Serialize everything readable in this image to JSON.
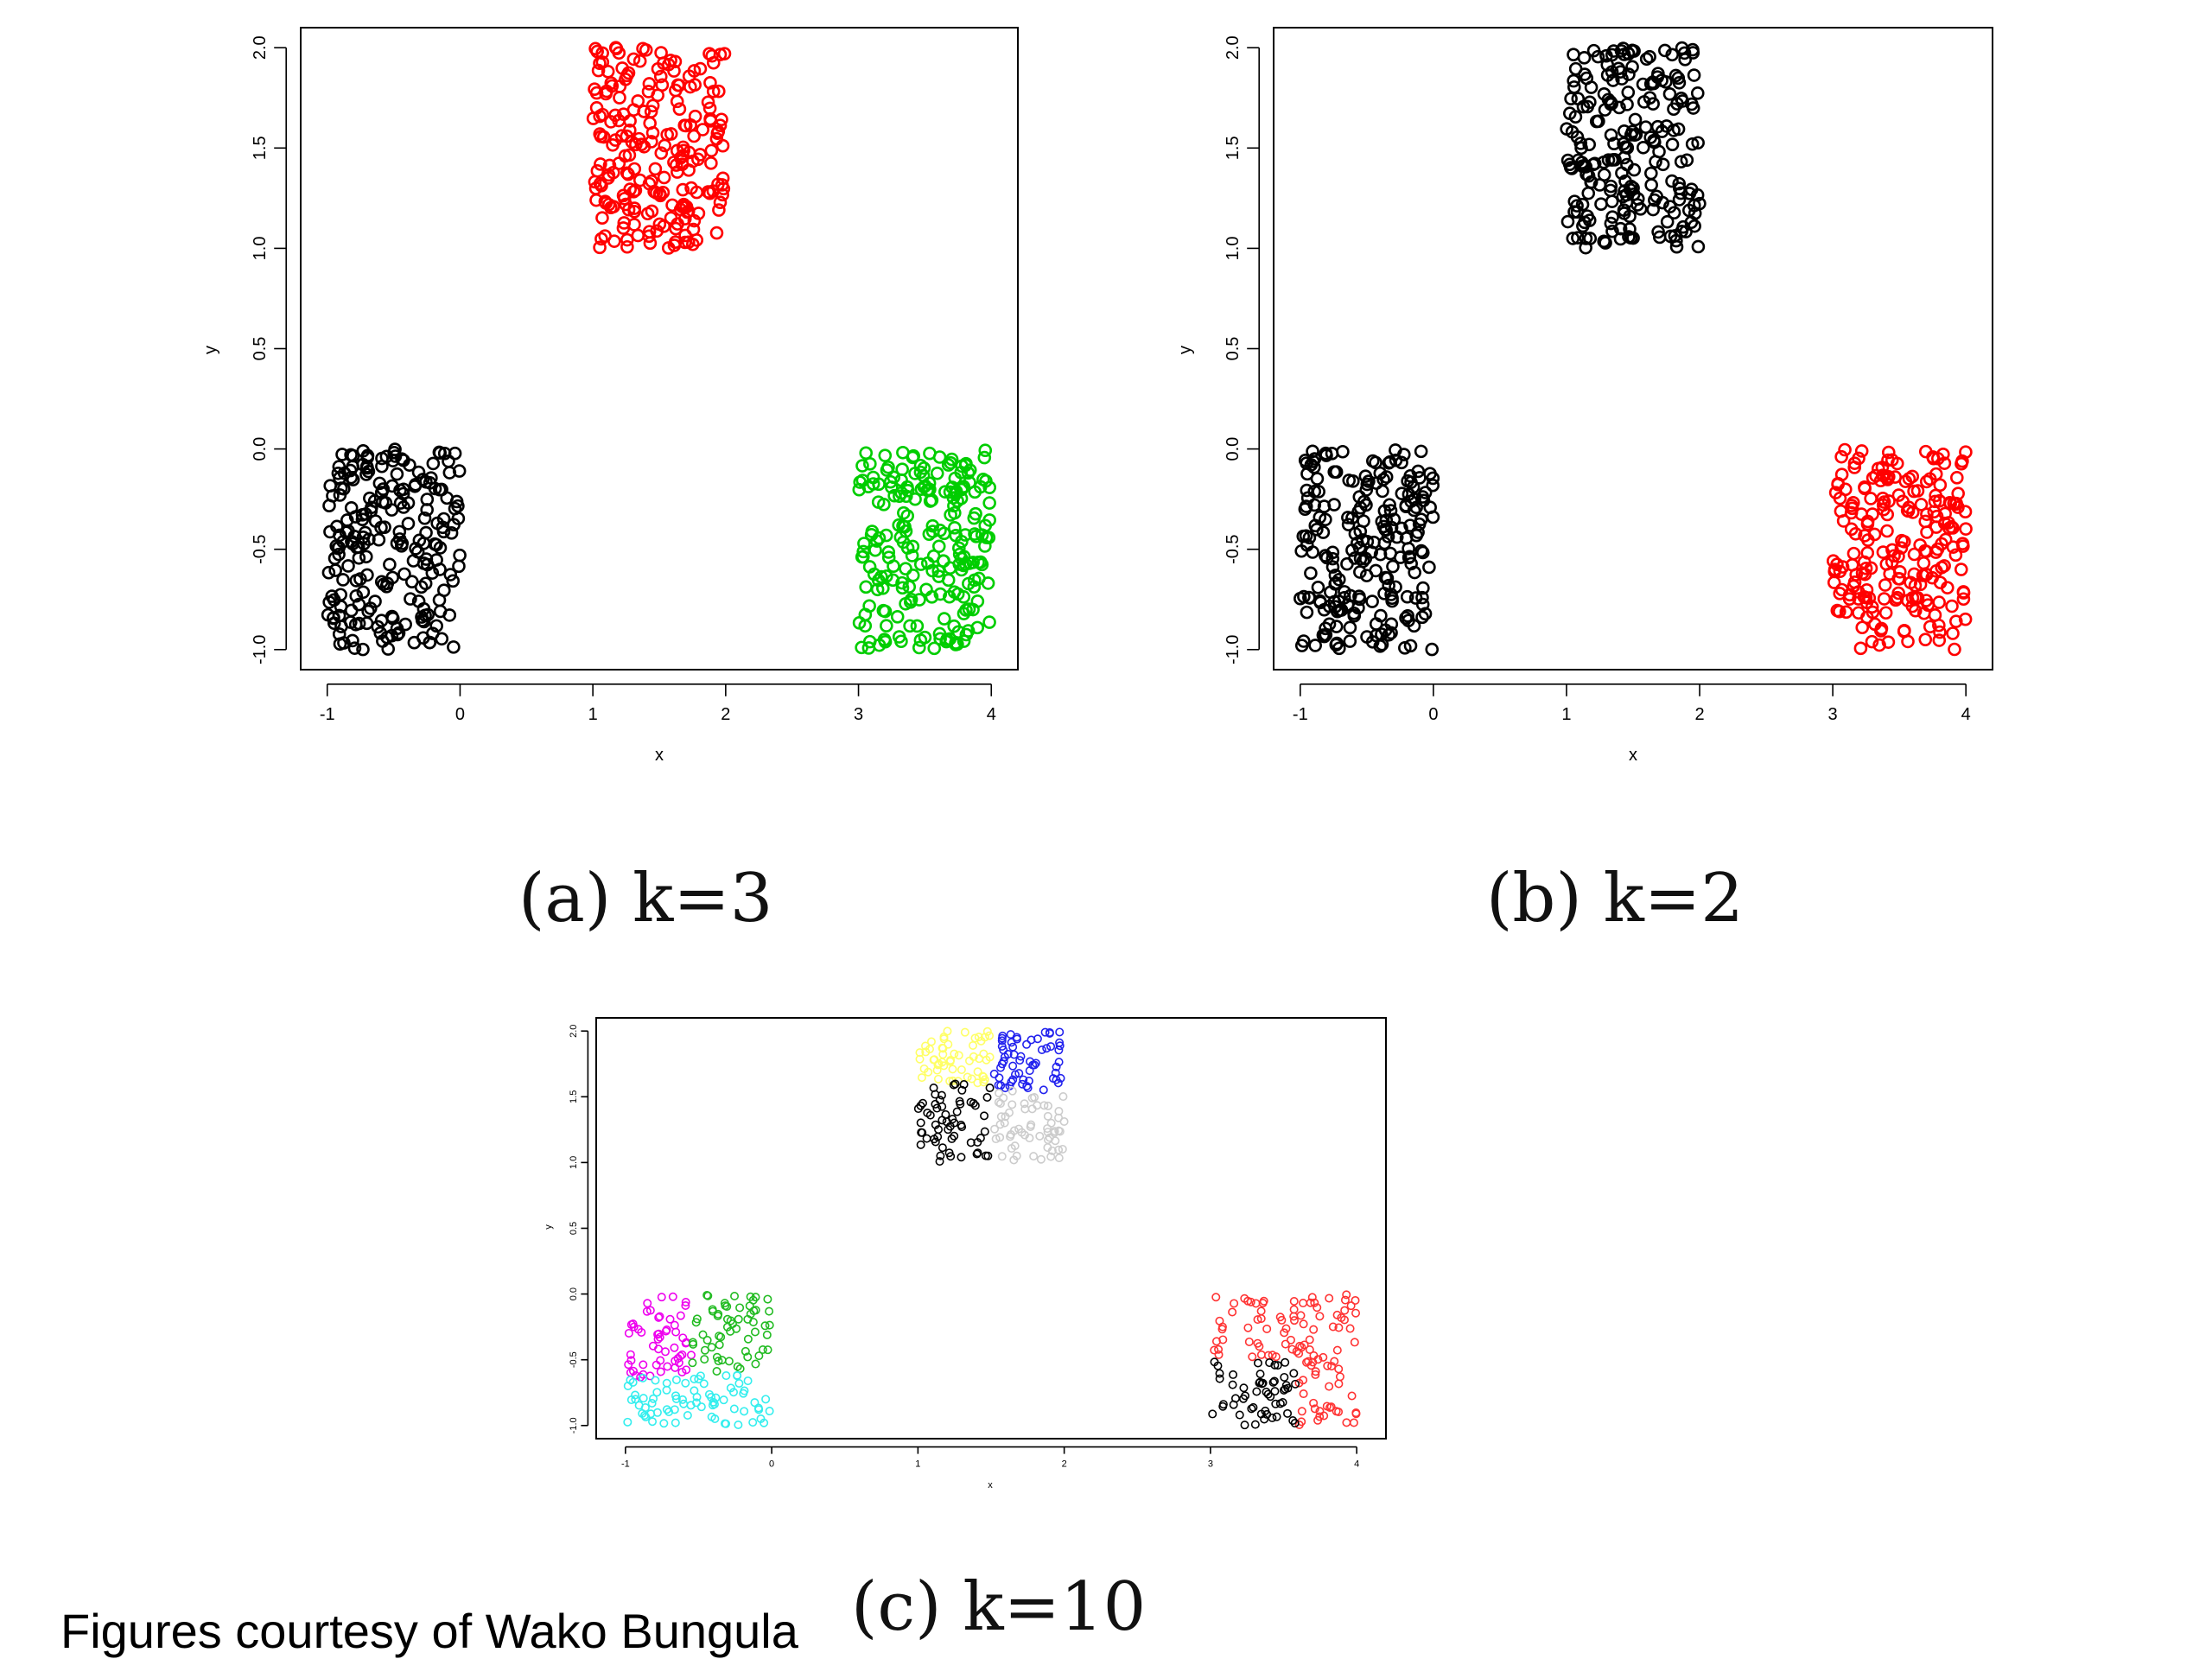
{
  "captions": {
    "a": "(a) k=3",
    "b": "(b) k=2",
    "c": "(c) k=10"
  },
  "credit": "Figures courtesy of Wako Bungula",
  "chart_data": [
    {
      "id": "a",
      "type": "scatter",
      "title": "",
      "xlabel": "x",
      "ylabel": "y",
      "xlim": [
        -1.2,
        4.2
      ],
      "ylim": [
        -1.1,
        2.1
      ],
      "xticks": [
        -1,
        0,
        1,
        2,
        3,
        4
      ],
      "xtick_labels": [
        "-1",
        "0",
        "1",
        "2",
        "3",
        "4"
      ],
      "yticks": [
        -1.0,
        -0.5,
        0.0,
        0.5,
        1.0,
        1.5,
        2.0
      ],
      "ytick_labels": [
        "-1.0",
        "-0.5",
        "0.0",
        "0.5",
        "1.0",
        "1.5",
        "2.0"
      ],
      "grid": false,
      "clusters": [
        {
          "color": "#000000",
          "x_range": [
            -1,
            0
          ],
          "y_range": [
            -1,
            0
          ],
          "count": 220
        },
        {
          "color": "#ff0000",
          "x_range": [
            1,
            2
          ],
          "y_range": [
            1,
            2
          ],
          "count": 220
        },
        {
          "color": "#00cd00",
          "x_range": [
            3,
            4
          ],
          "y_range": [
            -1,
            0
          ],
          "count": 220
        }
      ]
    },
    {
      "id": "b",
      "type": "scatter",
      "title": "",
      "xlabel": "x",
      "ylabel": "y",
      "xlim": [
        -1.2,
        4.2
      ],
      "ylim": [
        -1.1,
        2.1
      ],
      "xticks": [
        -1,
        0,
        1,
        2,
        3,
        4
      ],
      "xtick_labels": [
        "-1",
        "0",
        "1",
        "2",
        "3",
        "4"
      ],
      "yticks": [
        -1.0,
        -0.5,
        0.0,
        0.5,
        1.0,
        1.5,
        2.0
      ],
      "ytick_labels": [
        "-1.0",
        "-0.5",
        "0.0",
        "0.5",
        "1.0",
        "1.5",
        "2.0"
      ],
      "grid": false,
      "clusters": [
        {
          "color": "#000000",
          "x_range": [
            -1,
            0
          ],
          "y_range": [
            -1,
            0
          ],
          "count": 220
        },
        {
          "color": "#000000",
          "x_range": [
            1,
            2
          ],
          "y_range": [
            1,
            2
          ],
          "count": 220
        },
        {
          "color": "#ff0000",
          "x_range": [
            3,
            4
          ],
          "y_range": [
            -1,
            0
          ],
          "count": 220
        }
      ]
    },
    {
      "id": "c",
      "type": "scatter",
      "title": "",
      "xlabel": "x",
      "ylabel": "y",
      "xlim": [
        -1.2,
        4.2
      ],
      "ylim": [
        -1.1,
        2.1
      ],
      "xticks": [
        -1,
        0,
        1,
        2,
        3,
        4
      ],
      "xtick_labels": [
        "-1",
        "0",
        "1",
        "2",
        "3",
        "4"
      ],
      "yticks": [
        -1.0,
        -0.5,
        0.0,
        0.5,
        1.0,
        1.5,
        2.0
      ],
      "ytick_labels": [
        "-1.0",
        "-0.5",
        "0.0",
        "0.5",
        "1.0",
        "1.5",
        "2.0"
      ],
      "grid": false,
      "clusters": [
        {
          "color": "#ffff66",
          "x_range": [
            1,
            1.5
          ],
          "y_range": [
            1.6,
            2
          ],
          "count": 55
        },
        {
          "color": "#2222ee",
          "x_range": [
            1.5,
            2
          ],
          "y_range": [
            1.55,
            2
          ],
          "count": 60
        },
        {
          "color": "#000000",
          "x_range": [
            1,
            1.5
          ],
          "y_range": [
            1,
            1.6
          ],
          "count": 60
        },
        {
          "color": "#cccccc",
          "x_range": [
            1.5,
            2
          ],
          "y_range": [
            1,
            1.55
          ],
          "count": 60
        },
        {
          "color": "#ee00ee",
          "x_range": [
            -1,
            -0.55
          ],
          "y_range": [
            -0.65,
            0
          ],
          "count": 55
        },
        {
          "color": "#22bb22",
          "x_range": [
            -0.55,
            0
          ],
          "y_range": [
            -0.6,
            0
          ],
          "count": 60
        },
        {
          "color": "#33eeee",
          "x_range": [
            -1,
            0
          ],
          "y_range": [
            -1,
            -0.6
          ],
          "count": 75
        },
        {
          "color": "#ff3333",
          "x_range": [
            3,
            4
          ],
          "y_range": [
            -0.5,
            0
          ],
          "count": 75
        },
        {
          "color": "#ff3333",
          "x_range": [
            3.6,
            4
          ],
          "y_range": [
            -1,
            -0.5
          ],
          "count": 35
        },
        {
          "color": "#000000",
          "x_range": [
            3,
            3.6
          ],
          "y_range": [
            -1,
            -0.5
          ],
          "count": 55
        }
      ]
    }
  ]
}
